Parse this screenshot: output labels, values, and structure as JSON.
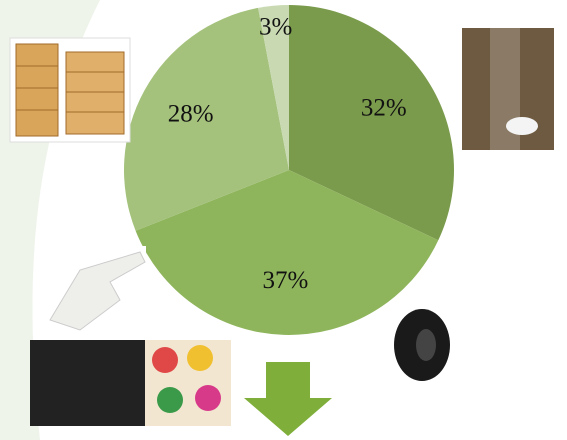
{
  "chart_data": {
    "type": "pie",
    "values": [
      32,
      37,
      28,
      3
    ],
    "value_labels": [
      "32%",
      "37%",
      "28%",
      "3%"
    ],
    "colors": [
      "#7b9b4c",
      "#8fb55c",
      "#a4c27c",
      "#c9dab2"
    ]
  }
}
